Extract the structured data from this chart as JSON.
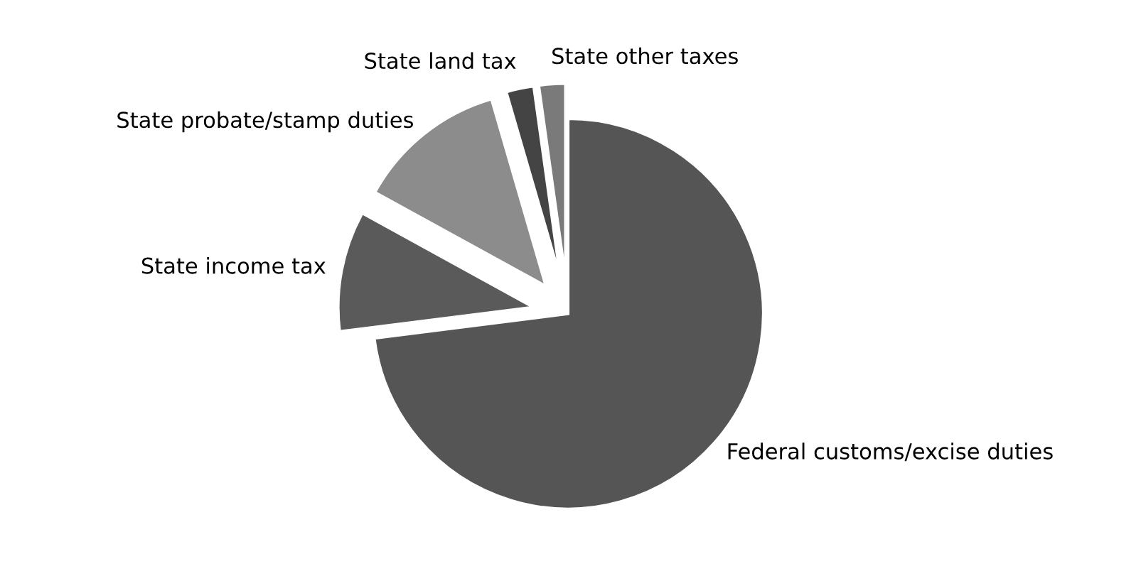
{
  "chart_data": {
    "type": "pie",
    "categories": [
      "Federal customs/excise duties",
      "State income tax",
      "State probate/stamp duties",
      "State land tax",
      "State other taxes"
    ],
    "values": [
      73,
      10,
      12.5,
      2.3,
      2.2
    ],
    "colors": [
      "#555555",
      "#5a5a5a",
      "#8c8c8c",
      "#444444",
      "#7a7a7a"
    ]
  }
}
